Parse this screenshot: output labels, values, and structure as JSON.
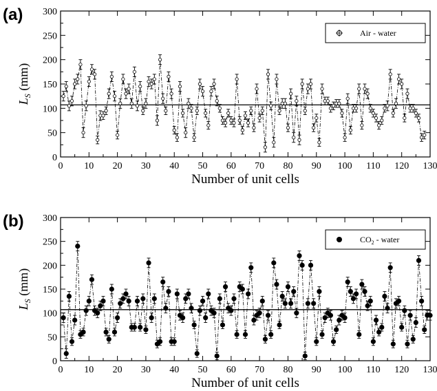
{
  "chart_data": [
    {
      "type": "scatter",
      "panel_label": "(a)",
      "xlabel": "Number of unit cells",
      "ylabel": "L_S (mm)",
      "ylabel_main": "L",
      "ylabel_sub": "S",
      "ylabel_rest": " (mm)",
      "xlim": [
        0,
        130
      ],
      "ylim": [
        0,
        300
      ],
      "xticks": [
        0,
        10,
        20,
        30,
        40,
        50,
        60,
        70,
        80,
        90,
        100,
        110,
        120,
        130
      ],
      "yticks": [
        0,
        50,
        100,
        150,
        200,
        250,
        300
      ],
      "reference_line": 107,
      "marker": "open-circle",
      "legend_position": "top-right",
      "series": [
        {
          "name": "Air - water",
          "legend_main": "Air - water",
          "legend_sub": "",
          "legend_rest": "",
          "x": [
            1,
            2,
            3,
            4,
            5,
            6,
            7,
            8,
            9,
            10,
            11,
            12,
            13,
            14,
            15,
            16,
            17,
            18,
            19,
            20,
            21,
            22,
            23,
            24,
            25,
            26,
            27,
            28,
            29,
            30,
            31,
            32,
            33,
            34,
            35,
            36,
            37,
            38,
            39,
            40,
            41,
            42,
            43,
            44,
            45,
            46,
            47,
            48,
            49,
            50,
            51,
            52,
            53,
            54,
            55,
            56,
            57,
            58,
            59,
            60,
            61,
            62,
            63,
            64,
            65,
            66,
            67,
            68,
            69,
            70,
            71,
            72,
            73,
            74,
            75,
            76,
            77,
            78,
            79,
            80,
            81,
            82,
            83,
            84,
            85,
            86,
            87,
            88,
            89,
            90,
            91,
            92,
            93,
            94,
            95,
            96,
            97,
            98,
            99,
            100,
            101,
            102,
            103,
            104,
            105,
            106,
            107,
            108,
            109,
            110,
            111,
            112,
            113,
            114,
            115,
            116,
            117,
            118,
            119,
            120,
            121,
            122,
            123,
            124,
            125,
            126,
            127,
            128
          ],
          "y": [
            125,
            145,
            105,
            115,
            150,
            160,
            190,
            50,
            105,
            155,
            180,
            170,
            35,
            85,
            85,
            95,
            130,
            165,
            125,
            45,
            110,
            160,
            130,
            140,
            110,
            175,
            105,
            145,
            95,
            110,
            155,
            150,
            160,
            75,
            200,
            120,
            95,
            165,
            130,
            55,
            40,
            145,
            90,
            50,
            110,
            100,
            40,
            95,
            150,
            135,
            90,
            65,
            135,
            150,
            115,
            100,
            75,
            70,
            90,
            75,
            70,
            160,
            75,
            55,
            85,
            70,
            95,
            60,
            140,
            80,
            95,
            20,
            170,
            105,
            30,
            160,
            95,
            110,
            110,
            60,
            130,
            40,
            115,
            35,
            150,
            95,
            140,
            150,
            60,
            80,
            30,
            140,
            115,
            115,
            100,
            105,
            110,
            110,
            90,
            40,
            120,
            55,
            100,
            100,
            140,
            65,
            140,
            130,
            100,
            90,
            80,
            65,
            75,
            100,
            105,
            170,
            90,
            110,
            160,
            150,
            80,
            130,
            100,
            100,
            90,
            80,
            40,
            45
          ],
          "err": [
            10,
            10,
            10,
            10,
            10,
            10,
            10,
            10,
            10,
            10,
            10,
            10,
            8,
            10,
            8,
            8,
            10,
            10,
            10,
            8,
            10,
            10,
            10,
            10,
            10,
            10,
            10,
            10,
            8,
            10,
            10,
            10,
            10,
            10,
            10,
            10,
            8,
            10,
            10,
            8,
            8,
            10,
            8,
            10,
            10,
            8,
            8,
            8,
            10,
            10,
            8,
            8,
            10,
            10,
            10,
            8,
            8,
            8,
            8,
            8,
            8,
            10,
            8,
            8,
            8,
            8,
            8,
            8,
            10,
            8,
            8,
            10,
            10,
            8,
            10,
            10,
            8,
            10,
            10,
            8,
            10,
            10,
            10,
            10,
            10,
            8,
            10,
            10,
            8,
            8,
            8,
            10,
            8,
            8,
            8,
            8,
            8,
            8,
            8,
            8,
            10,
            8,
            8,
            8,
            10,
            8,
            10,
            10,
            8,
            8,
            8,
            8,
            8,
            8,
            10,
            10,
            8,
            10,
            10,
            10,
            8,
            10,
            8,
            8,
            8,
            8,
            8,
            8
          ]
        }
      ]
    },
    {
      "type": "scatter",
      "panel_label": "(b)",
      "xlabel": "Number of unit cells",
      "ylabel": "L_S (mm)",
      "ylabel_main": "L",
      "ylabel_sub": "S",
      "ylabel_rest": " (mm)",
      "xlim": [
        0,
        130
      ],
      "ylim": [
        0,
        300
      ],
      "xticks": [
        0,
        10,
        20,
        30,
        40,
        50,
        60,
        70,
        80,
        90,
        100,
        110,
        120,
        130
      ],
      "yticks": [
        0,
        50,
        100,
        150,
        200,
        250,
        300
      ],
      "reference_line": 107,
      "marker": "filled-circle",
      "legend_position": "top-right",
      "series": [
        {
          "name": "CO2 - water",
          "legend_main": "CO",
          "legend_sub": "2",
          "legend_rest": " - water",
          "x": [
            1,
            2,
            3,
            4,
            5,
            6,
            7,
            8,
            9,
            10,
            11,
            12,
            13,
            14,
            15,
            16,
            17,
            18,
            19,
            20,
            21,
            22,
            23,
            24,
            25,
            26,
            27,
            28,
            29,
            30,
            31,
            32,
            33,
            34,
            35,
            36,
            37,
            38,
            39,
            40,
            41,
            42,
            43,
            44,
            45,
            46,
            47,
            48,
            49,
            50,
            51,
            52,
            53,
            54,
            55,
            56,
            57,
            58,
            59,
            60,
            61,
            62,
            63,
            64,
            65,
            66,
            67,
            68,
            69,
            70,
            71,
            72,
            73,
            74,
            75,
            76,
            77,
            78,
            79,
            80,
            81,
            82,
            83,
            84,
            85,
            86,
            87,
            88,
            89,
            90,
            91,
            92,
            93,
            94,
            95,
            96,
            97,
            98,
            99,
            100,
            101,
            102,
            103,
            104,
            105,
            106,
            107,
            108,
            109,
            110,
            111,
            112,
            113,
            114,
            115,
            116,
            117,
            118,
            119,
            120,
            121,
            122,
            123,
            124,
            125,
            126,
            127,
            128,
            129,
            130
          ],
          "y": [
            90,
            15,
            135,
            40,
            85,
            240,
            55,
            60,
            105,
            125,
            170,
            105,
            100,
            115,
            125,
            60,
            45,
            150,
            60,
            90,
            120,
            130,
            140,
            125,
            70,
            70,
            125,
            70,
            130,
            65,
            205,
            90,
            130,
            35,
            40,
            165,
            110,
            145,
            40,
            40,
            140,
            95,
            90,
            130,
            140,
            110,
            75,
            15,
            105,
            125,
            90,
            140,
            105,
            100,
            10,
            130,
            75,
            155,
            110,
            105,
            130,
            55,
            155,
            150,
            55,
            140,
            195,
            85,
            95,
            100,
            125,
            45,
            95,
            55,
            205,
            160,
            75,
            135,
            120,
            155,
            120,
            145,
            100,
            220,
            200,
            10,
            120,
            200,
            120,
            40,
            145,
            55,
            90,
            100,
            95,
            40,
            65,
            85,
            95,
            90,
            165,
            145,
            130,
            140,
            55,
            160,
            145,
            115,
            125,
            40,
            85,
            60,
            70,
            135,
            110,
            195,
            35,
            120,
            125,
            70,
            105,
            35,
            95,
            45,
            80,
            210,
            125,
            65,
            95,
            95
          ],
          "err": [
            10,
            10,
            10,
            8,
            10,
            10,
            8,
            8,
            10,
            10,
            10,
            10,
            10,
            10,
            10,
            8,
            8,
            10,
            8,
            10,
            10,
            10,
            10,
            10,
            8,
            8,
            10,
            8,
            10,
            8,
            10,
            10,
            10,
            8,
            8,
            10,
            10,
            10,
            8,
            8,
            10,
            10,
            10,
            10,
            10,
            10,
            8,
            8,
            10,
            10,
            10,
            10,
            10,
            10,
            8,
            10,
            8,
            10,
            10,
            10,
            10,
            8,
            10,
            10,
            8,
            10,
            10,
            10,
            10,
            10,
            10,
            8,
            10,
            8,
            10,
            10,
            8,
            10,
            10,
            10,
            10,
            10,
            10,
            10,
            10,
            8,
            10,
            10,
            10,
            8,
            10,
            8,
            10,
            10,
            10,
            8,
            8,
            10,
            10,
            10,
            10,
            10,
            10,
            10,
            8,
            10,
            10,
            10,
            10,
            8,
            10,
            8,
            8,
            10,
            10,
            10,
            8,
            10,
            10,
            8,
            10,
            8,
            10,
            8,
            10,
            10,
            10,
            8,
            10,
            10
          ]
        }
      ]
    }
  ]
}
